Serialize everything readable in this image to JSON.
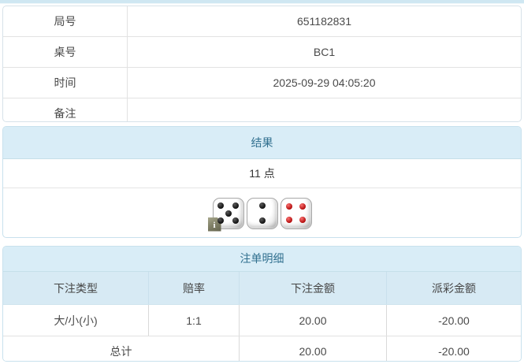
{
  "page": {
    "top_strip_color": "#cfe7f2"
  },
  "game_info": {
    "rows": [
      {
        "label": "局号",
        "value": "651182831"
      },
      {
        "label": "桌号",
        "value": "BC1"
      },
      {
        "label": "时间",
        "value": "2025-09-29 04:05:20"
      },
      {
        "label": "备注",
        "value": ""
      }
    ]
  },
  "result": {
    "header": "结果",
    "points": "11 点",
    "dice": [
      {
        "value": 5,
        "color": "black"
      },
      {
        "value": 2,
        "color": "black"
      },
      {
        "value": 4,
        "color": "red"
      }
    ],
    "info_badge": "i"
  },
  "bets": {
    "header": "注单明细",
    "columns": [
      "下注类型",
      "赔率",
      "下注金额",
      "派彩金额"
    ],
    "rows": [
      {
        "type": "大/小(小)",
        "odds": "1:1",
        "amount": "20.00",
        "payout": "-20.00"
      }
    ],
    "total": {
      "label": "总计",
      "amount": "20.00",
      "payout": "-20.00"
    }
  },
  "colors": {
    "header_bg": "#d9edf7",
    "header_text": "#31708f",
    "negative_text": "#e53e3e"
  }
}
